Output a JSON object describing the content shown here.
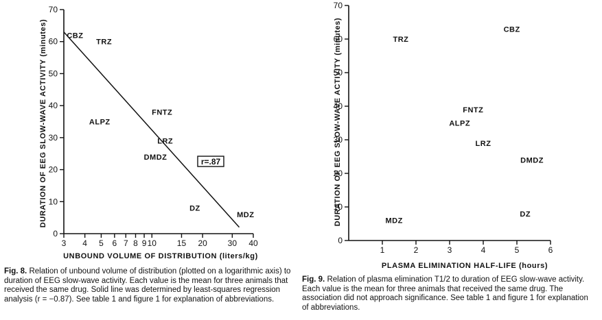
{
  "chart_data": [
    {
      "type": "scatter",
      "xlabel": "UNBOUND VOLUME OF DISTRIBUTION (liters/kg)",
      "ylabel": "DURATION OF EEG SLOW-WAVE ACTIVITY (minutes)",
      "x_scale": "log",
      "xlim": [
        3,
        40
      ],
      "ylim": [
        0,
        70
      ],
      "x_ticks": [
        3,
        4,
        5,
        6,
        7,
        8,
        9,
        10,
        15,
        20,
        30,
        40
      ],
      "x_tick_labels": [
        "3",
        "4",
        "5",
        "6",
        "7",
        "8",
        "9",
        "10",
        "15",
        "20",
        "30",
        "40"
      ],
      "y_ticks": [
        0,
        10,
        20,
        30,
        40,
        50,
        60,
        70
      ],
      "y_tick_labels": [
        "0",
        "10",
        "20",
        "30",
        "40",
        "50",
        "60",
        "70"
      ],
      "points": [
        {
          "label": "CBZ",
          "x": 3.5,
          "y": 62
        },
        {
          "label": "TRZ",
          "x": 5.2,
          "y": 60
        },
        {
          "label": "ALPZ",
          "x": 4.9,
          "y": 35
        },
        {
          "label": "FNTZ",
          "x": 11.5,
          "y": 38
        },
        {
          "label": "LRZ",
          "x": 12.0,
          "y": 29
        },
        {
          "label": "DMDZ",
          "x": 10.5,
          "y": 24
        },
        {
          "label": "DZ",
          "x": 18.0,
          "y": 8
        },
        {
          "label": "MDZ",
          "x": 36.0,
          "y": 6
        }
      ],
      "fit_line": {
        "x": [
          3,
          33
        ],
        "y": [
          63,
          2
        ]
      },
      "annotation": "r=.87"
    },
    {
      "type": "scatter",
      "xlabel": "PLASMA ELIMINATION HALF-LIFE (hours)",
      "ylabel": "DURATION OF EEG SLOW-WAVE ACTIVITY (minutes)",
      "xlim": [
        0,
        6
      ],
      "ylim": [
        0,
        70
      ],
      "x_ticks": [
        1,
        2,
        3,
        4,
        5,
        6
      ],
      "x_tick_labels": [
        "1",
        "2",
        "3",
        "4",
        "5",
        "6"
      ],
      "y_ticks": [
        0,
        10,
        20,
        30,
        40,
        50,
        60,
        70
      ],
      "y_tick_labels": [
        "0",
        "10",
        "20",
        "30",
        "40",
        "50",
        "60",
        "70"
      ],
      "points": [
        {
          "label": "TRZ",
          "x": 1.55,
          "y": 60
        },
        {
          "label": "CBZ",
          "x": 4.85,
          "y": 63
        },
        {
          "label": "FNTZ",
          "x": 3.7,
          "y": 39
        },
        {
          "label": "ALPZ",
          "x": 3.3,
          "y": 35
        },
        {
          "label": "LRZ",
          "x": 4.0,
          "y": 29
        },
        {
          "label": "DMDZ",
          "x": 5.45,
          "y": 24
        },
        {
          "label": "DZ",
          "x": 5.25,
          "y": 8
        },
        {
          "label": "MDZ",
          "x": 1.35,
          "y": 6
        }
      ]
    }
  ],
  "captions": {
    "fig8": {
      "number": "Fig. 8.",
      "text": "Relation of unbound volume of distribution (plotted on a logarithmic axis) to duration of EEG slow-wave activity. Each value is the mean for three animals that received the same drug. Solid line was determined by least-squares regression analysis (r = −0.87). See table 1 and figure 1 for explanation of abbreviations."
    },
    "fig9": {
      "number": "Fig. 9.",
      "text": "Relation of plasma elimination T1/2 to duration of EEG slow-wave activity. Each value is the mean for three animals that received the same drug. The association did not approach significance. See table 1 and figure 1 for explanation of abbreviations."
    }
  }
}
